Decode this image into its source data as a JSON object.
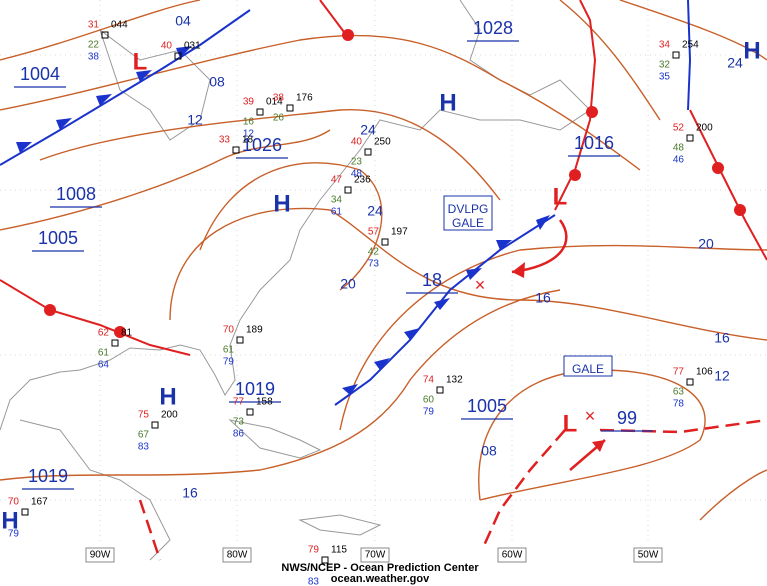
{
  "isobar_labels": [
    "04",
    "1004",
    "08",
    "1028",
    "12",
    "1026",
    "1008",
    "24",
    "1016",
    "24",
    "1005",
    "24",
    "20",
    "18",
    "16",
    "20",
    "16",
    "1019",
    "16",
    "12",
    "1005",
    "08",
    "99",
    "1019",
    "16"
  ],
  "highs": [
    "H",
    "H",
    "H",
    "H",
    "H"
  ],
  "lows": [
    "L",
    "L",
    "L"
  ],
  "boxes": [
    [
      "DVLPG",
      "GALE"
    ],
    [
      "GALE"
    ]
  ],
  "longitudes": [
    "90W",
    "80W",
    "70W",
    "60W",
    "50W"
  ],
  "credits": [
    "NWS/NCEP - Ocean Prediction Center",
    "ocean.weather.gov"
  ],
  "stations": [
    {
      "t": "34",
      "p": "254",
      "d": "32",
      "v": "35"
    },
    {
      "t": "52",
      "p": "200",
      "d": "48",
      "v": "46"
    },
    {
      "t": "40",
      "p": "250",
      "d": "23",
      "v": "48"
    },
    {
      "t": "47",
      "p": "236",
      "d": "34",
      "v": "61"
    },
    {
      "t": "57",
      "p": "197",
      "d": "42",
      "v": "73"
    },
    {
      "t": "74",
      "p": "132",
      "d": "60",
      "v": "79"
    },
    {
      "t": "77",
      "p": "106",
      "d": "63",
      "v": "78"
    },
    {
      "t": "70",
      "p": "189",
      "d": "61",
      "v": "79"
    },
    {
      "t": "75",
      "p": "200",
      "d": "67",
      "v": "83"
    },
    {
      "t": "77",
      "p": "158",
      "d": "73",
      "v": "86"
    },
    {
      "t": "62",
      "p": "81",
      "d": "61",
      "v": "64"
    },
    {
      "t": "70",
      "p": "167",
      "d": "",
      "v": "79"
    },
    {
      "t": "79",
      "p": "115",
      "d": "",
      "v": "83"
    },
    {
      "t": "39",
      "p": "014",
      "d": "16",
      "v": "12"
    },
    {
      "t": "38",
      "p": "176",
      "d": "26",
      "v": ""
    },
    {
      "t": "31",
      "p": "044",
      "d": "22",
      "v": "38"
    },
    {
      "t": "40",
      "p": "031",
      "d": "",
      "v": ""
    },
    {
      "t": "33",
      "p": "18",
      "d": "",
      "v": ""
    }
  ]
}
